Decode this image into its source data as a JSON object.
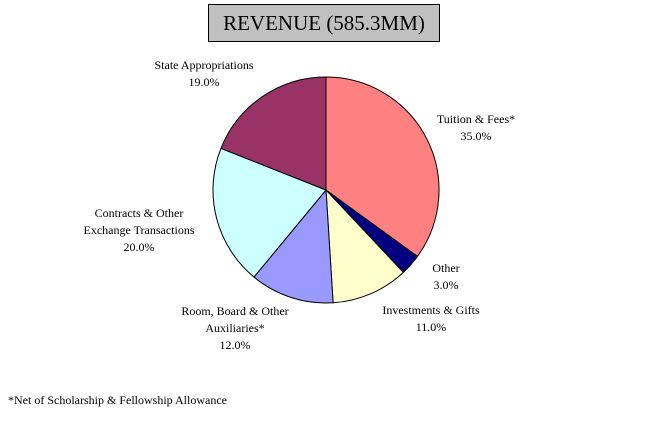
{
  "chart_data": {
    "type": "pie",
    "title": "REVENUE (585.3MM)",
    "slices": [
      {
        "label": [
          "Tuition & Fees*"
        ],
        "pct_text": "35.0%",
        "value": 35.0,
        "color": "#ff8080"
      },
      {
        "label": [
          "Other"
        ],
        "pct_text": "3.0%",
        "value": 3.0,
        "color": "#000080"
      },
      {
        "label": [
          "Investments & Gifts"
        ],
        "pct_text": "11.0%",
        "value": 11.0,
        "color": "#ffffcc"
      },
      {
        "label": [
          "Room, Board & Other",
          "Auxiliaries*"
        ],
        "pct_text": "12.0%",
        "value": 12.0,
        "color": "#9999ff"
      },
      {
        "label": [
          "Contracts & Other",
          "Exchange Transactions"
        ],
        "pct_text": "20.0%",
        "value": 20.0,
        "color": "#ccffff"
      },
      {
        "label": [
          "State Appropriations"
        ],
        "pct_text": "19.0%",
        "value": 19.0,
        "color": "#993366"
      }
    ],
    "start": "12 o'clock",
    "direction": "clockwise"
  },
  "footnote": "*Net of Scholarship & Fellowship Allowance"
}
